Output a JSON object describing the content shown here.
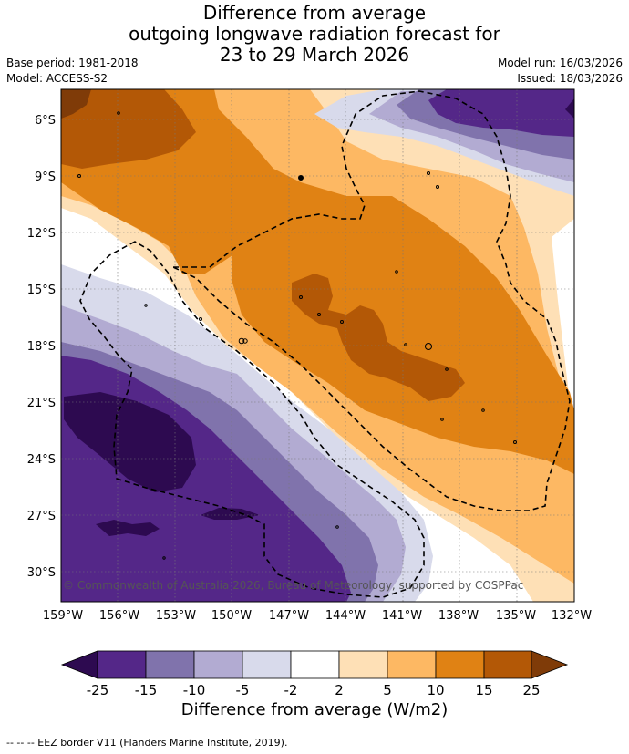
{
  "title": {
    "line1": "Difference from average",
    "line2": "outgoing longwave radiation forecast for",
    "line3": "23 to 29 March 2026"
  },
  "meta": {
    "base_period": "Base period: 1981-2018",
    "model": "Model: ACCESS-S2",
    "model_run": "Model run: 16/03/2026",
    "issued": "Issued: 18/03/2026"
  },
  "axes": {
    "lat_labels": [
      "6°S",
      "9°S",
      "12°S",
      "15°S",
      "18°S",
      "21°S",
      "24°S",
      "27°S",
      "30°S"
    ],
    "lon_labels": [
      "159°W",
      "156°W",
      "153°W",
      "150°W",
      "147°W",
      "144°W",
      "141°W",
      "138°W",
      "135°W",
      "132°W"
    ]
  },
  "copyright": "© Commonwealth of Australia 2026, Bureau of Meteorology, supported by COSPPac",
  "colorbar": {
    "ticks": [
      "-25",
      "-15",
      "-10",
      "-5",
      "-2",
      "2",
      "5",
      "10",
      "15",
      "25"
    ],
    "title": "Difference from average (W/m2)",
    "colors": {
      "below_min": "#2d0a50",
      "c1": "#542788",
      "c2": "#8073ac",
      "c3": "#b2abd2",
      "c4": "#d8daeb",
      "c5": "#ffffff",
      "c6": "#fee0b6",
      "c7": "#fdb863",
      "c8": "#e08214",
      "c9": "#b35806",
      "above_max": "#7f3b08"
    }
  },
  "legend_note": "--  --  -- EEZ border V11 (Flanders Marine Institute, 2019)."
}
